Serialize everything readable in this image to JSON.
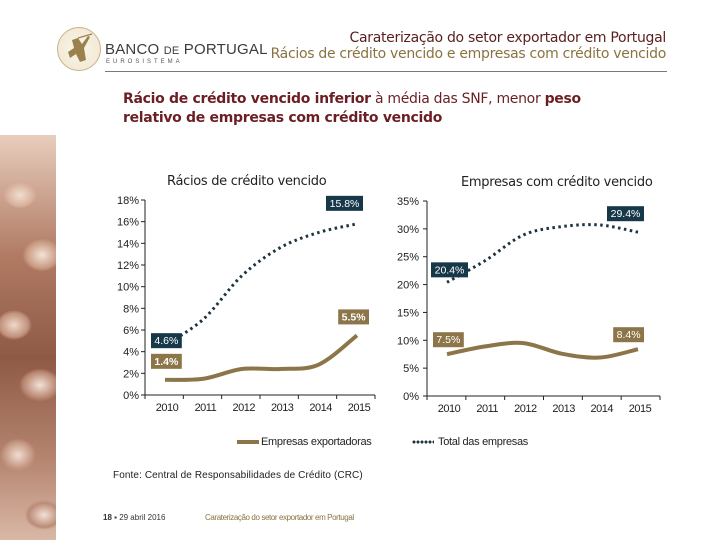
{
  "header": {
    "bank_name_1": "BANCO",
    "bank_name_de": "DE",
    "bank_name_2": "PORTUGAL",
    "bank_sub": "EUROSISTEMA",
    "title": "Caraterização do setor exportador em Portugal",
    "subtitle": "Rácios de crédito vencido e empresas com crédito vencido"
  },
  "headline": {
    "part1_bold": "Rácio de crédito vencido inferior",
    "part2": " à média das SNF, menor ",
    "part3_bold": "peso relativo de empresas com crédito vencido"
  },
  "legend": {
    "exporters": "Empresas exportadoras",
    "total": "Total das empresas"
  },
  "colors": {
    "exporters": "#8c7548",
    "total": "#1d3340",
    "label_total_bg": "#173848",
    "label_exporters_bg": "#8c7548"
  },
  "source": "Fonte: Central de Responsabilidades de Crédito (CRC)",
  "footer": {
    "page": "18",
    "date": "29 abril 2016",
    "title": "Caraterização do setor exportador em Portugal"
  },
  "chart_data": [
    {
      "type": "line",
      "title": "Rácios de crédito vencido",
      "categories": [
        "2010",
        "2011",
        "2012",
        "2013",
        "2014",
        "2015"
      ],
      "ylim": [
        0,
        18
      ],
      "yticks": [
        0,
        2,
        4,
        6,
        8,
        10,
        12,
        14,
        16,
        18
      ],
      "ytick_labels": [
        "0%",
        "2%",
        "4%",
        "6%",
        "8%",
        "10%",
        "12%",
        "14%",
        "16%",
        "18%"
      ],
      "grid": false,
      "legend": "bottom",
      "series": [
        {
          "name": "Empresas exportadoras",
          "style": "solid",
          "values": [
            1.4,
            1.5,
            2.4,
            2.4,
            2.8,
            5.5
          ],
          "labels": [
            {
              "index": 0,
              "text": "1.4%"
            },
            {
              "index": 5,
              "text": "5.5%"
            }
          ]
        },
        {
          "name": "Total das empresas",
          "style": "dotted",
          "values": [
            4.6,
            7.0,
            11.0,
            13.6,
            15.0,
            15.8
          ],
          "labels": [
            {
              "index": 0,
              "text": "4.6%"
            },
            {
              "index": 5,
              "text": "15.8%"
            }
          ]
        }
      ]
    },
    {
      "type": "line",
      "title": "Empresas com crédito vencido",
      "categories": [
        "2010",
        "2011",
        "2012",
        "2013",
        "2014",
        "2015"
      ],
      "ylim": [
        0,
        35
      ],
      "yticks": [
        0,
        5,
        10,
        15,
        20,
        25,
        30,
        35
      ],
      "ytick_labels": [
        "0%",
        "5%",
        "10%",
        "15%",
        "20%",
        "25%",
        "30%",
        "35%"
      ],
      "grid": false,
      "legend": "bottom",
      "series": [
        {
          "name": "Empresas exportadoras",
          "style": "solid",
          "values": [
            7.5,
            8.9,
            9.5,
            7.6,
            6.9,
            8.4
          ],
          "labels": [
            {
              "index": 0,
              "text": "7.5%"
            },
            {
              "index": 5,
              "text": "8.4%"
            }
          ]
        },
        {
          "name": "Total das empresas",
          "style": "dotted",
          "values": [
            20.4,
            24.3,
            28.9,
            30.4,
            30.7,
            29.4
          ],
          "labels": [
            {
              "index": 0,
              "text": "20.4%"
            },
            {
              "index": 5,
              "text": "29.4%"
            }
          ]
        }
      ]
    }
  ]
}
